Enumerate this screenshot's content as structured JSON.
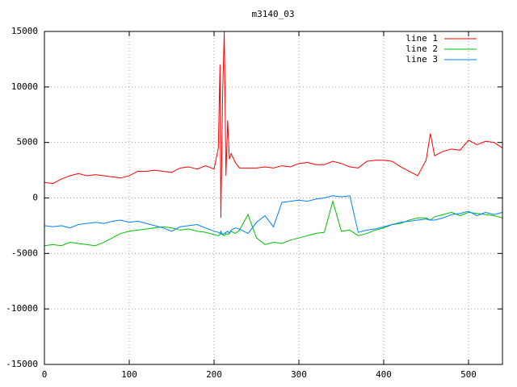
{
  "chart_data": {
    "type": "line",
    "title": "m3140_03",
    "x": [
      0,
      10,
      20,
      30,
      40,
      50,
      60,
      70,
      80,
      90,
      100,
      110,
      120,
      130,
      140,
      150,
      160,
      170,
      180,
      190,
      200,
      205,
      207,
      208,
      210,
      212,
      214,
      216,
      218,
      220,
      225,
      230,
      240,
      250,
      260,
      270,
      280,
      290,
      300,
      310,
      320,
      330,
      340,
      350,
      360,
      370,
      380,
      390,
      400,
      410,
      420,
      430,
      440,
      450,
      455,
      460,
      470,
      480,
      490,
      500,
      510,
      520,
      530,
      540
    ],
    "series": [
      {
        "name": "line 1",
        "color": "#ff0000",
        "values": [
          1400,
          1300,
          1700,
          2000,
          2200,
          2000,
          2100,
          2000,
          1900,
          1800,
          2000,
          2400,
          2400,
          2500,
          2400,
          2300,
          2700,
          2800,
          2600,
          2900,
          2600,
          4500,
          12000,
          -1800,
          9000,
          15000,
          2000,
          7000,
          3500,
          4000,
          3200,
          2700,
          2700,
          2700,
          2800,
          2700,
          2900,
          2800,
          3100,
          3200,
          3000,
          3000,
          3300,
          3100,
          2800,
          2700,
          3300,
          3400,
          3400,
          3300,
          2800,
          2400,
          2000,
          3400,
          5800,
          3800,
          4200,
          4400,
          4300,
          5200,
          4800,
          5100,
          5000,
          4500
        ]
      },
      {
        "name": "line 2",
        "color": "#00c000",
        "values": [
          -4300,
          -4200,
          -4300,
          -4000,
          -4100,
          -4200,
          -4300,
          -4000,
          -3600,
          -3200,
          -3000,
          -2900,
          -2800,
          -2700,
          -2600,
          -2700,
          -2900,
          -2800,
          -3000,
          -3100,
          -3300,
          -3400,
          -3300,
          -3200,
          -3300,
          -3400,
          -3200,
          -3300,
          -3200,
          -3000,
          -3200,
          -2900,
          -1500,
          -3600,
          -4200,
          -4000,
          -4100,
          -3800,
          -3600,
          -3400,
          -3200,
          -3100,
          -300,
          -3000,
          -2900,
          -3400,
          -3200,
          -2900,
          -2700,
          -2400,
          -2300,
          -2000,
          -1800,
          -1800,
          -2000,
          -1700,
          -1500,
          -1300,
          -1600,
          -1300,
          -1400,
          -1500,
          -1600,
          -1800
        ]
      },
      {
        "name": "line 3",
        "color": "#0080ff",
        "values": [
          -2500,
          -2600,
          -2500,
          -2700,
          -2400,
          -2300,
          -2200,
          -2300,
          -2100,
          -2000,
          -2200,
          -2100,
          -2300,
          -2500,
          -2700,
          -3000,
          -2600,
          -2500,
          -2400,
          -2700,
          -3000,
          -3100,
          -3200,
          -3000,
          -3300,
          -3200,
          -3100,
          -3000,
          -3200,
          -2900,
          -2700,
          -2800,
          -3200,
          -2200,
          -1600,
          -2600,
          -400,
          -300,
          -200,
          -300,
          -100,
          0,
          200,
          100,
          200,
          -3100,
          -2900,
          -2800,
          -2600,
          -2400,
          -2200,
          -2100,
          -2000,
          -1900,
          -2000,
          -2000,
          -1800,
          -1500,
          -1400,
          -1200,
          -1600,
          -1300,
          -1500,
          -1300
        ]
      }
    ],
    "xlim": [
      0,
      540
    ],
    "ylim": [
      -15000,
      15000
    ],
    "xticks": [
      0,
      100,
      200,
      300,
      400,
      500
    ],
    "yticks": [
      -15000,
      -10000,
      -5000,
      0,
      5000,
      10000,
      15000
    ],
    "grid": true,
    "legend": "top-right"
  }
}
